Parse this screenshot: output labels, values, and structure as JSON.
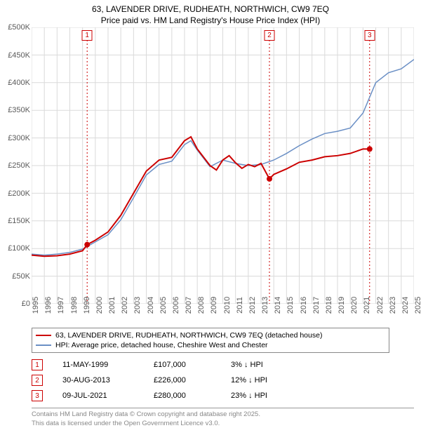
{
  "title_line1": "63, LAVENDER DRIVE, RUDHEATH, NORTHWICH, CW9 7EQ",
  "title_line2": "Price paid vs. HM Land Registry's House Price Index (HPI)",
  "chart": {
    "type": "line",
    "background_color": "#ffffff",
    "grid_color": "#dadada",
    "ylim": [
      0,
      500000
    ],
    "ytick_step": 50000,
    "y_prefix": "£",
    "y_suffix": "K",
    "xlim": [
      1995,
      2025
    ],
    "xtick_step": 1,
    "series_property": {
      "label": "63, LAVENDER DRIVE, RUDHEATH, NORTHWICH, CW9 7EQ (detached house)",
      "color": "#cc0000",
      "width": 2,
      "data": [
        [
          1995.0,
          88000
        ],
        [
          1996.0,
          86000
        ],
        [
          1997.0,
          87000
        ],
        [
          1998.0,
          90000
        ],
        [
          1999.0,
          96000
        ],
        [
          1999.36,
          107000
        ],
        [
          2000.0,
          115000
        ],
        [
          2001.0,
          130000
        ],
        [
          2002.0,
          160000
        ],
        [
          2003.0,
          200000
        ],
        [
          2004.0,
          240000
        ],
        [
          2005.0,
          260000
        ],
        [
          2006.0,
          265000
        ],
        [
          2007.0,
          295000
        ],
        [
          2007.5,
          302000
        ],
        [
          2008.0,
          280000
        ],
        [
          2009.0,
          250000
        ],
        [
          2009.5,
          242000
        ],
        [
          2010.0,
          260000
        ],
        [
          2010.5,
          268000
        ],
        [
          2011.0,
          255000
        ],
        [
          2011.5,
          245000
        ],
        [
          2012.0,
          252000
        ],
        [
          2012.5,
          248000
        ],
        [
          2013.0,
          254000
        ],
        [
          2013.66,
          226000
        ],
        [
          2014.0,
          234000
        ],
        [
          2015.0,
          244000
        ],
        [
          2016.0,
          256000
        ],
        [
          2017.0,
          260000
        ],
        [
          2018.0,
          266000
        ],
        [
          2019.0,
          268000
        ],
        [
          2020.0,
          272000
        ],
        [
          2021.0,
          280000
        ],
        [
          2021.52,
          280000
        ]
      ]
    },
    "series_hpi": {
      "label": "HPI: Average price, detached house, Cheshire West and Chester",
      "color": "#6a8fc5",
      "width": 1.5,
      "data": [
        [
          1995.0,
          90000
        ],
        [
          1996.0,
          88000
        ],
        [
          1997.0,
          90000
        ],
        [
          1998.0,
          93000
        ],
        [
          1999.0,
          99000
        ],
        [
          2000.0,
          112000
        ],
        [
          2001.0,
          125000
        ],
        [
          2002.0,
          152000
        ],
        [
          2003.0,
          192000
        ],
        [
          2004.0,
          233000
        ],
        [
          2005.0,
          252000
        ],
        [
          2006.0,
          258000
        ],
        [
          2007.0,
          288000
        ],
        [
          2007.5,
          295000
        ],
        [
          2008.0,
          278000
        ],
        [
          2009.0,
          248000
        ],
        [
          2010.0,
          260000
        ],
        [
          2011.0,
          254000
        ],
        [
          2012.0,
          250000
        ],
        [
          2013.0,
          252000
        ],
        [
          2014.0,
          260000
        ],
        [
          2015.0,
          272000
        ],
        [
          2016.0,
          286000
        ],
        [
          2017.0,
          298000
        ],
        [
          2018.0,
          308000
        ],
        [
          2019.0,
          312000
        ],
        [
          2020.0,
          318000
        ],
        [
          2021.0,
          345000
        ],
        [
          2022.0,
          400000
        ],
        [
          2023.0,
          418000
        ],
        [
          2024.0,
          425000
        ],
        [
          2025.0,
          442000
        ]
      ]
    },
    "sale_markers": [
      {
        "n": "1",
        "x": 1999.36,
        "y": 107000
      },
      {
        "n": "2",
        "x": 2013.66,
        "y": 226000
      },
      {
        "n": "3",
        "x": 2021.52,
        "y": 280000
      }
    ],
    "marker_line_color": "#cc0000",
    "marker_line_dash": "2,3",
    "marker_dot_color": "#cc0000"
  },
  "legend": {
    "property_color": "#cc0000",
    "hpi_color": "#6a8fc5"
  },
  "sales": [
    {
      "n": "1",
      "date": "11-MAY-1999",
      "price": "£107,000",
      "diff": "3% ↓ HPI"
    },
    {
      "n": "2",
      "date": "30-AUG-2013",
      "price": "£226,000",
      "diff": "12% ↓ HPI"
    },
    {
      "n": "3",
      "date": "09-JUL-2021",
      "price": "£280,000",
      "diff": "23% ↓ HPI"
    }
  ],
  "attribution_line1": "Contains HM Land Registry data © Crown copyright and database right 2025.",
  "attribution_line2": "This data is licensed under the Open Government Licence v3.0."
}
